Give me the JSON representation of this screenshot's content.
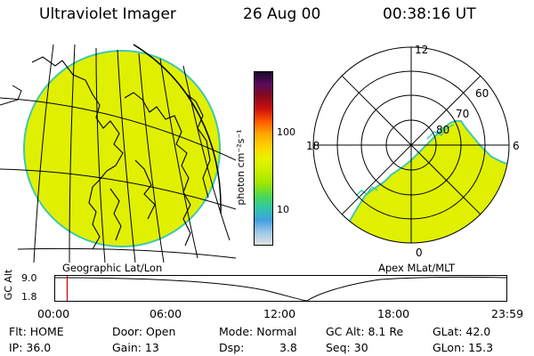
{
  "header": {
    "instrument": "Ultraviolet Imager",
    "date": "26 Aug 00",
    "time": "00:38:16 UT"
  },
  "left_panel": {
    "label": "Geographic Lat/Lon"
  },
  "right_panel": {
    "label": "Apex MLat/MLT",
    "mlt_labels": [
      "12",
      "18",
      "6",
      "0"
    ],
    "mlat_labels": [
      "60",
      "70",
      "80"
    ]
  },
  "colorbar": {
    "unit_label": "photon cm⁻²s⁻¹",
    "tick_labels": [
      "100",
      "10"
    ],
    "colors": [
      "#1a0a2e",
      "#5a0a5a",
      "#8a0a1a",
      "#cc1010",
      "#ff5a00",
      "#ffa500",
      "#ffd000",
      "#e8f200",
      "#c8f000",
      "#a0e800",
      "#50d850",
      "#30c8a8",
      "#40a0e0",
      "#a0c8e8",
      "#e0e0e0"
    ]
  },
  "timeline": {
    "y_axis_label": "GC Alt",
    "y_ticks": [
      "9.0",
      "1.8"
    ],
    "x_ticks": [
      "00:00",
      "06:00",
      "12:00",
      "18:00",
      "23:59"
    ],
    "marker_time_fraction": 0.0266
  },
  "status": {
    "flt": "Flt: HOME",
    "ip": "IP: 36.0",
    "door": "Door: Open",
    "gain": "Gain: 13",
    "mode": "Mode: Normal",
    "dsp": "Dsp:",
    "dsp_val": "3.8",
    "gc_alt": "GC Alt: 8.1 Re",
    "seq": "Seq: 30",
    "glat": "GLat: 42.0",
    "glon": "GLon: 15.3"
  },
  "colors": {
    "emission_fill": "#e0f000",
    "emission_edge": "#40c8b0",
    "marker": "#cc0000"
  }
}
